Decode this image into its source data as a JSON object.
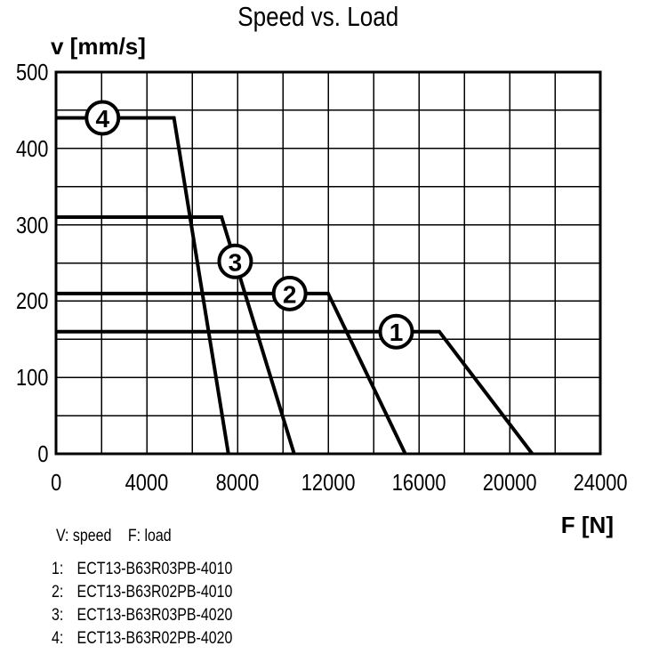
{
  "title": "Speed vs. Load",
  "y_axis_label": "v [mm/s]",
  "x_axis_label": "F [N]",
  "legend": {
    "v_label": "V: speed",
    "f_label": "F: load",
    "items": [
      {
        "num": "1:",
        "label": "ECT13-B63R03PB-4010"
      },
      {
        "num": "2:",
        "label": "ECT13-B63R02PB-4010"
      },
      {
        "num": "3:",
        "label": "ECT13-B63R03PB-4020"
      },
      {
        "num": "4:",
        "label": "ECT13-B63R02PB-4020"
      }
    ]
  },
  "colors": {
    "ink": "#000000",
    "background": "#ffffff"
  },
  "chart_data": {
    "type": "line",
    "title": "Speed vs. Load",
    "xlabel": "F [N]",
    "ylabel": "v [mm/s]",
    "xlim": [
      0,
      24000
    ],
    "ylim": [
      0,
      500
    ],
    "x_tick_labels": [
      0,
      4000,
      8000,
      12000,
      16000,
      20000,
      24000
    ],
    "y_tick_labels": [
      0,
      100,
      200,
      300,
      400,
      500
    ],
    "x_grid_step": 2000,
    "y_grid_step": 50,
    "grid": true,
    "legend_position": "below",
    "series": [
      {
        "id": 1,
        "name": "ECT13-B63R03PB-4010",
        "points_F_v": [
          [
            0,
            160
          ],
          [
            16900,
            160
          ],
          [
            21000,
            0
          ]
        ],
        "marker": {
          "label": "1",
          "F": 15000,
          "v": 160
        }
      },
      {
        "id": 2,
        "name": "ECT13-B63R02PB-4010",
        "points_F_v": [
          [
            0,
            210
          ],
          [
            12000,
            210
          ],
          [
            15400,
            0
          ]
        ],
        "marker": {
          "label": "2",
          "F": 10300,
          "v": 210
        }
      },
      {
        "id": 3,
        "name": "ECT13-B63R03PB-4020",
        "points_F_v": [
          [
            0,
            310
          ],
          [
            7300,
            310
          ],
          [
            10500,
            0
          ]
        ],
        "marker": {
          "label": "3",
          "F": 7900,
          "v": 252
        }
      },
      {
        "id": 4,
        "name": "ECT13-B63R02PB-4020",
        "points_F_v": [
          [
            0,
            440
          ],
          [
            5200,
            440
          ],
          [
            7600,
            0
          ]
        ],
        "marker": {
          "label": "4",
          "F": 2050,
          "v": 440
        }
      }
    ]
  }
}
